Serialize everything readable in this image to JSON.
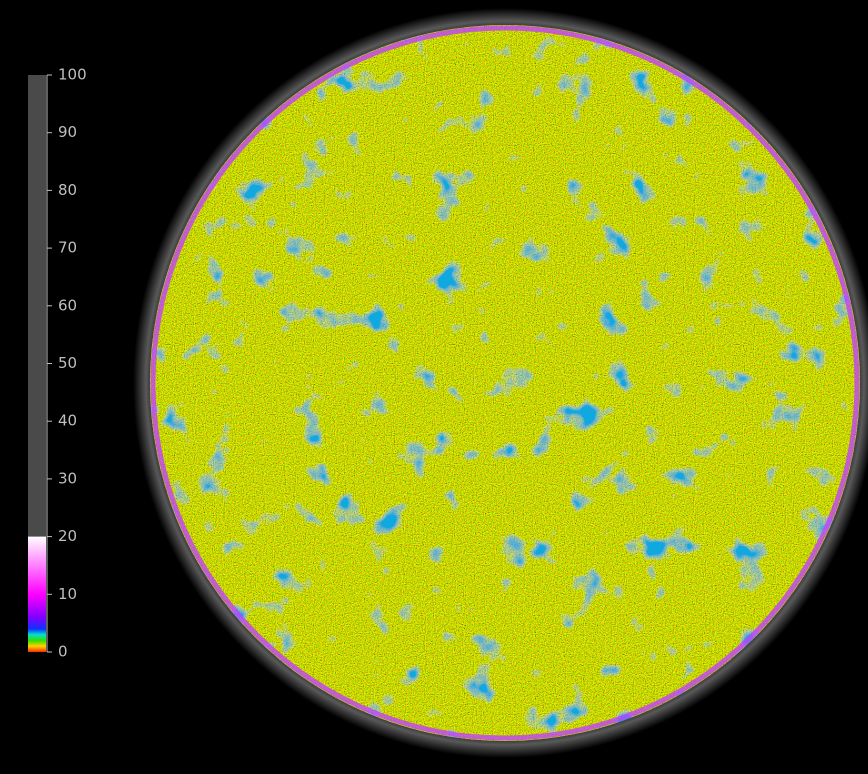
{
  "colorbar": {
    "range": [
      0,
      100
    ],
    "ticks": [
      0,
      10,
      20,
      30,
      40,
      50,
      60,
      70,
      80,
      90,
      100
    ],
    "background_color": "#4a4a4a",
    "gradient": [
      {
        "value": 0,
        "color": "#ff2a00"
      },
      {
        "value": 1,
        "color": "#ffd000"
      },
      {
        "value": 2,
        "color": "#30e000"
      },
      {
        "value": 3,
        "color": "#00e0d0"
      },
      {
        "value": 4,
        "color": "#1030ff"
      },
      {
        "value": 6,
        "color": "#8000ff"
      },
      {
        "value": 10,
        "color": "#ff00ff"
      },
      {
        "value": 20,
        "color": "#ffffff"
      }
    ]
  }
}
